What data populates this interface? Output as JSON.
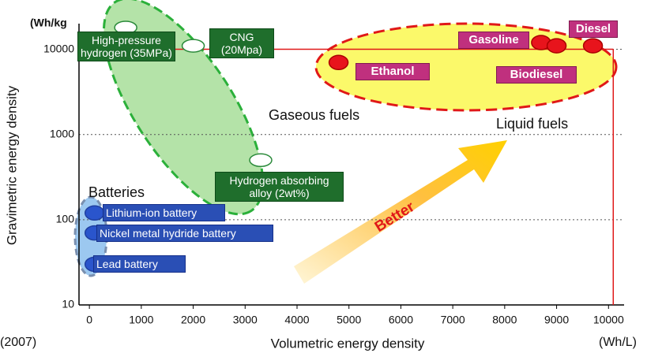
{
  "chart_data": {
    "type": "scatter",
    "xlabel": "Volumetric energy density",
    "ylabel": "Gravimetric energy density",
    "xunit": "(Wh/L)",
    "yunit": "(Wh/kg",
    "note": "(2007)",
    "arrow_label": "Better",
    "xlim": [
      -200,
      10300
    ],
    "ylim": [
      10,
      20000
    ],
    "ylog": true,
    "grid": true,
    "xticks": [
      0,
      1000,
      2000,
      3000,
      4000,
      5000,
      6000,
      7000,
      8000,
      9000,
      10000
    ],
    "yticks": [
      10,
      100,
      1000,
      10000
    ],
    "series": [
      {
        "name": "Gaseous fuels",
        "color": "#ffffff",
        "labels": [
          "High-pressure hydrogen (35MPa)",
          "CNG (20Mpa)",
          "Hydrogen absorbing alloy (2wt%)"
        ],
        "x": [
          700,
          2000,
          3300
        ],
        "values": [
          18000,
          11000,
          500
        ]
      },
      {
        "name": "Liquid fuels",
        "color": "#e8141c",
        "labels": [
          "Ethanol",
          "Gasoline",
          "Biodiesel",
          "Diesel"
        ],
        "x": [
          4800,
          8700,
          9000,
          9700
        ],
        "values": [
          7000,
          12000,
          11000,
          11000
        ]
      },
      {
        "name": "Batteries",
        "color": "#2a55cc",
        "labels": [
          "Lithium-ion battery",
          "Nickel metal hydride battery",
          "Lead  battery"
        ],
        "x": [
          100,
          100,
          100
        ],
        "values": [
          120,
          70,
          30
        ]
      }
    ]
  }
}
